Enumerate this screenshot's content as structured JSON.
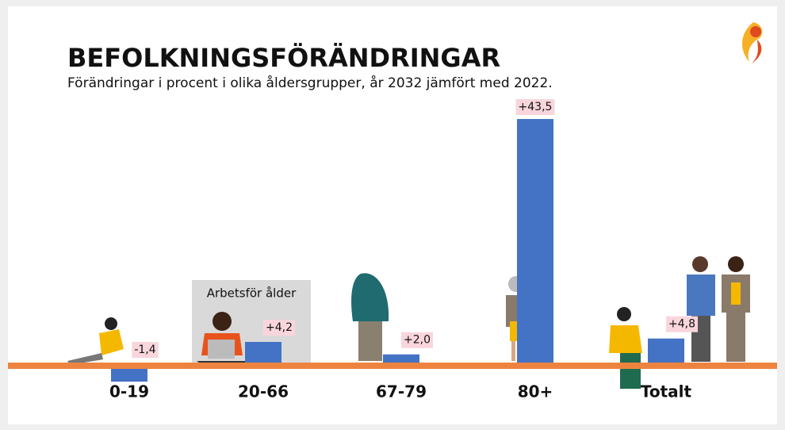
{
  "chart_data": {
    "type": "bar",
    "title": "BEFOLKNINGSFÖRÄNDRINGAR",
    "subtitle": "Förändringar i procent i olika åldersgrupper, år 2032 jämfört med 2022.",
    "annotation": "Arbetsför ålder",
    "categories": [
      "0-19",
      "20-66",
      "67-79",
      "80+",
      "Totalt"
    ],
    "values": [
      -1.4,
      4.2,
      2.0,
      43.5,
      4.8
    ],
    "value_labels": [
      "-1,4",
      "+4,2",
      "+2,0",
      "+43,5",
      "+4,8"
    ],
    "color": "#4472c4"
  }
}
